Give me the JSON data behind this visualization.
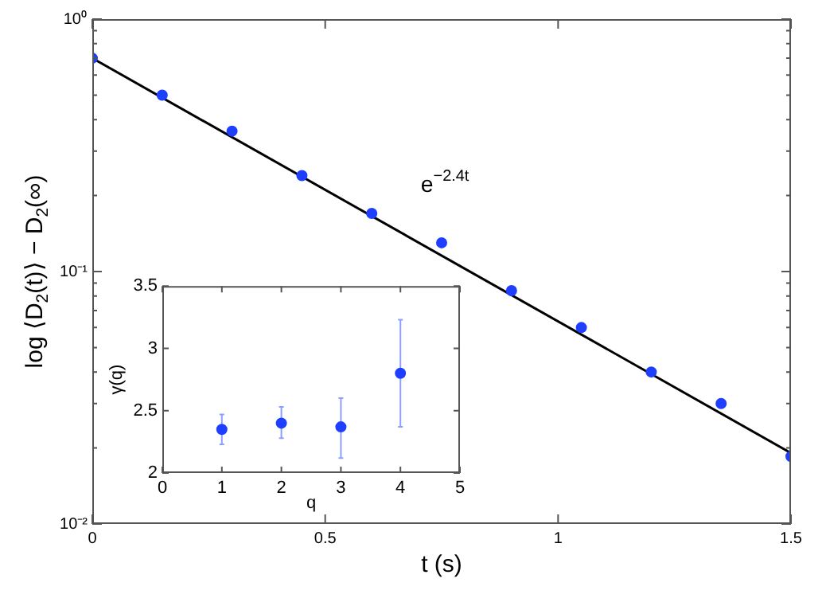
{
  "chart_data": [
    {
      "type": "scatter",
      "xlabel": "t (s)",
      "ylabel": "log ⟨D$_{2}$(t)⟩ − D$_{2}$(∞)",
      "log": "y",
      "xlim": [
        0,
        1.5
      ],
      "xticks": [
        0,
        0.5,
        1,
        1.5
      ],
      "ylim": [
        0.01,
        1
      ],
      "yticks": [
        {
          "value": 0.01,
          "label": "10⁻²"
        },
        {
          "value": 0.02,
          "label": null
        },
        {
          "value": 0.03,
          "label": null
        },
        {
          "value": 0.04,
          "label": null
        },
        {
          "value": 0.05,
          "label": null
        },
        {
          "value": 0.06,
          "label": null
        },
        {
          "value": 0.07,
          "label": null
        },
        {
          "value": 0.08,
          "label": null
        },
        {
          "value": 0.09,
          "label": null
        },
        {
          "value": 0.1,
          "label": "10⁻¹"
        },
        {
          "value": 0.2,
          "label": null
        },
        {
          "value": 0.3,
          "label": null
        },
        {
          "value": 0.4,
          "label": null
        },
        {
          "value": 0.5,
          "label": null
        },
        {
          "value": 0.6,
          "label": null
        },
        {
          "value": 0.7,
          "label": null
        },
        {
          "value": 0.8,
          "label": null
        },
        {
          "value": 0.9,
          "label": null
        },
        {
          "value": 1,
          "label": "10⁰"
        }
      ],
      "annotations": [
        "e$^{−2.4t}$"
      ],
      "series": [
        {
          "color": "#1f3fff",
          "marker": "circle",
          "x": [
            0,
            0.15,
            0.3,
            0.45,
            0.6,
            0.75,
            0.9,
            1.05,
            1.2,
            1.35,
            1.5
          ],
          "values": [
            0.7,
            0.5,
            0.36,
            0.24,
            0.17,
            0.13,
            0.084,
            0.06,
            0.04,
            0.03,
            0.0185
          ]
        },
        {
          "type": "line",
          "color": "#000000",
          "marker": "none",
          "x": [
            0,
            1.5
          ],
          "values": [
            0.7,
            0.0191
          ]
        }
      ]
    },
    {
      "type": "scatter",
      "xlabel": "q",
      "ylabel": "γ(q)",
      "marker": "circle",
      "xlim": [
        0,
        5
      ],
      "xticks": [
        0,
        1,
        2,
        3,
        4,
        5
      ],
      "ylim": [
        2,
        3.5
      ],
      "yticks": [
        2,
        2.5,
        3,
        3.5
      ],
      "x": [
        1,
        2,
        3,
        4
      ],
      "series": [
        {
          "color": "#1f3fff",
          "values": [
            2.35,
            2.4,
            2.37,
            2.8
          ],
          "errors": [
            [
              2.23,
              2.47
            ],
            [
              2.28,
              2.53
            ],
            [
              2.12,
              2.6
            ],
            [
              2.37,
              3.23
            ]
          ]
        }
      ]
    }
  ]
}
